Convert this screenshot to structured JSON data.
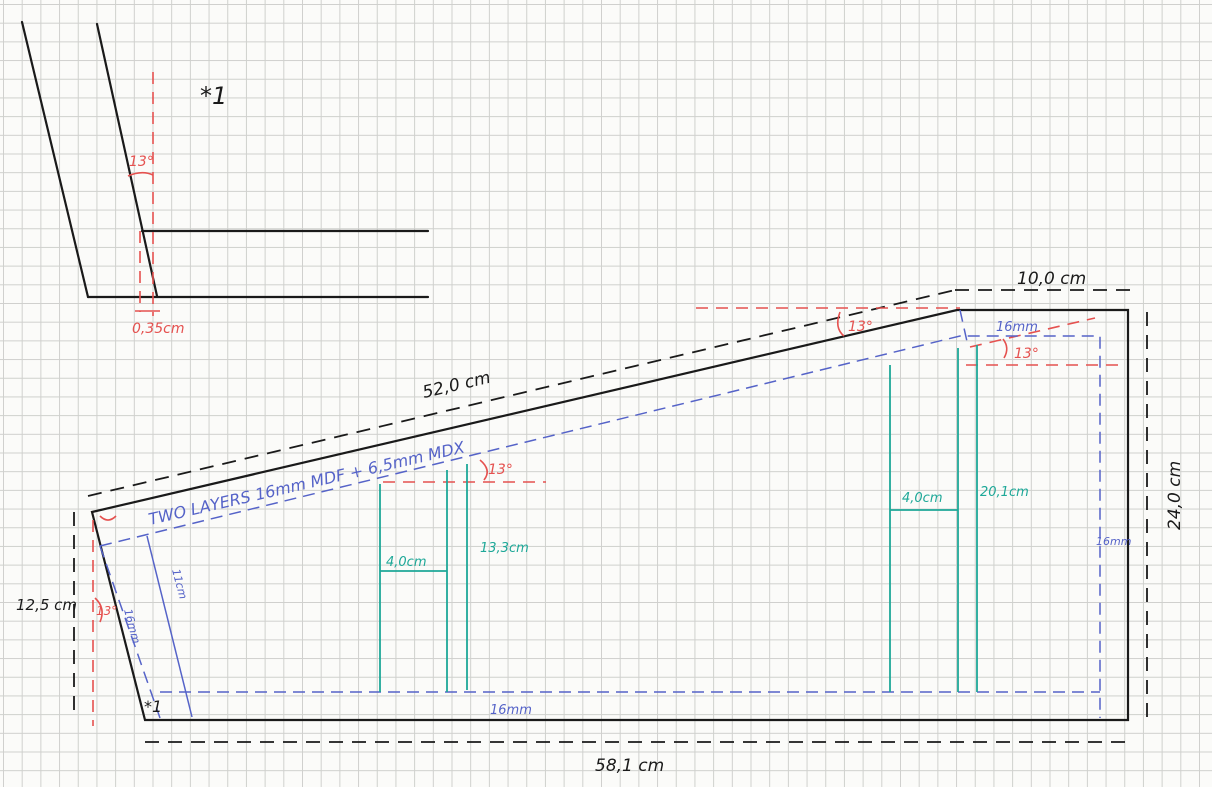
{
  "sketch": {
    "detail_marker": "*1",
    "detail_angle": "13°",
    "detail_offset": "0,35cm",
    "dim_top_width": "10,0 cm",
    "dim_slope_length": "52,0 cm",
    "dim_right_height": "24,0 cm",
    "dim_left_height": "12,5 cm",
    "dim_bottom_width": "58,1 cm",
    "angle_top_outer": "13°",
    "angle_top_inner": "13°",
    "angle_left": "13°",
    "angle_brace": "13°",
    "layers_note": "TWO LAYERS  16mm MDF + 6,5mm MDX",
    "inner_top_thickness": "16mm",
    "inner_bottom_thickness": "16mm",
    "inner_right_thickness": "16mm",
    "inner_left_thickness": "16mm",
    "inner_left_height": "11cm",
    "brace1_width": "4,0cm",
    "brace1_height": "13,3cm",
    "brace2_width": "4,0cm",
    "brace2_height": "20,1cm",
    "bottom_marker": "*1",
    "colors": {
      "ink": "#1a1a1a",
      "angles": "#e5514f",
      "inner_panel": "#5563c8",
      "braces": "#1ea898",
      "grid": "#cfd0cd"
    }
  }
}
